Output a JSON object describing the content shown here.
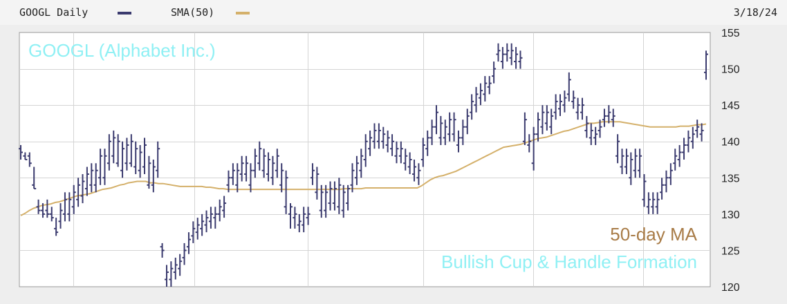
{
  "header": {
    "ticker_label": "GOOGL Daily",
    "sma_label": "SMA(50)",
    "date": "3/18/24"
  },
  "annotations": {
    "company": "GOOGL (Alphabet Inc.)",
    "ma_label": "50-day MA",
    "pattern": "Bullish Cup & Handle Formation"
  },
  "colors": {
    "price_bars": "#3a3a6e",
    "sma": "#d4b06a",
    "company_text": "#8ff0f4",
    "ma_text": "#a87b46",
    "pattern_text": "#8ff0f4"
  },
  "chart_data": {
    "type": "ohlc",
    "ylim": [
      120,
      155
    ],
    "y_ticks": [
      120,
      125,
      130,
      135,
      140,
      145,
      150,
      155
    ],
    "grid": true,
    "series": [
      {
        "name": "GOOGL Daily",
        "high": [
          139.5,
          138.5,
          138.5,
          136.5,
          132,
          131.5,
          132,
          131,
          129.5,
          131.5,
          133,
          133,
          134,
          135,
          135.5,
          136.5,
          137,
          137,
          139,
          139,
          141,
          141.5,
          141,
          140,
          140.5,
          141,
          140,
          139.5,
          140.5,
          138,
          137.5,
          140,
          126,
          123,
          123.5,
          124,
          124.5,
          126,
          127.5,
          129,
          129.5,
          130,
          130.5,
          131,
          131,
          132,
          132.5,
          136,
          137,
          137,
          138,
          138,
          137,
          139,
          140,
          139,
          138.5,
          138,
          139,
          137,
          136,
          131.5,
          131,
          130,
          131,
          131,
          137,
          136.5,
          134,
          134,
          134.5,
          134.5,
          135,
          134,
          134,
          137,
          138,
          139,
          141,
          141.5,
          142.5,
          142.5,
          142,
          141.5,
          141,
          140,
          140,
          139,
          138.5,
          137.5,
          137,
          140.5,
          141.5,
          143,
          145,
          143.5,
          143,
          144,
          144,
          141.5,
          143,
          144.5,
          146.5,
          147.5,
          148,
          149,
          149,
          151,
          153.5,
          153,
          153.5,
          153.5,
          153,
          152.5,
          144,
          141,
          142,
          144,
          145,
          145,
          144.5,
          146.5,
          146.5,
          147,
          149.5,
          147,
          146,
          146,
          143.5,
          142.5,
          142,
          143,
          144.5,
          145,
          144.5,
          141,
          139,
          139,
          138.5,
          139,
          139,
          135.5,
          133,
          133,
          133,
          135,
          136,
          137,
          139,
          139.5,
          140.5,
          141.5,
          142,
          143,
          142.5,
          152.5
        ],
        "low": [
          137.5,
          137.5,
          136.5,
          133.5,
          130,
          129.5,
          129.5,
          129,
          127,
          128,
          129,
          129,
          130,
          131,
          131.5,
          132.5,
          133,
          133,
          134,
          134,
          136,
          137,
          136.5,
          135,
          136,
          136.5,
          135.5,
          135,
          135.5,
          133.5,
          133,
          135,
          124,
          120,
          120,
          121,
          121.5,
          123,
          124.5,
          126,
          126.5,
          127,
          127.5,
          128,
          128,
          129,
          129.5,
          133,
          134,
          133,
          134.5,
          134.5,
          133,
          135,
          136,
          135,
          134.5,
          134,
          135,
          133,
          130,
          128,
          128,
          127.5,
          127.5,
          128.5,
          134,
          132,
          129.5,
          129.5,
          130.5,
          130.5,
          130,
          129.5,
          130.5,
          133,
          134,
          135,
          136.5,
          138,
          139,
          139,
          139,
          138.5,
          138,
          137,
          137,
          136,
          135.5,
          134.5,
          134,
          136.5,
          138,
          139.5,
          141,
          139.5,
          139.5,
          140,
          140,
          138.5,
          139.5,
          141,
          143,
          144,
          145,
          145.5,
          146.5,
          148,
          151,
          150,
          151,
          150.5,
          150,
          150,
          139.5,
          138.5,
          136,
          140,
          141,
          141.5,
          141,
          143,
          143.5,
          144,
          145.5,
          144.5,
          143,
          143,
          140.5,
          139.5,
          139.5,
          140.5,
          142,
          142.5,
          142,
          137,
          135.5,
          135.5,
          134,
          135,
          135,
          131,
          130,
          130,
          130,
          132,
          133,
          134,
          136,
          136.5,
          137.5,
          138.5,
          139,
          140.5,
          140,
          148.5
        ],
        "open": [
          139,
          138,
          138,
          134,
          131,
          130.5,
          130.5,
          130,
          128,
          129,
          130,
          130,
          131,
          132,
          132.5,
          133.5,
          134,
          134,
          135,
          135,
          137,
          138,
          137,
          136,
          137,
          137,
          136.5,
          136,
          136.5,
          134,
          134,
          136,
          125.5,
          121,
          121,
          122,
          122.5,
          124,
          125.5,
          127,
          127.5,
          128,
          128.5,
          129,
          129.5,
          130,
          130.5,
          134,
          135,
          134,
          135.5,
          135.5,
          134,
          136,
          137,
          136,
          135.5,
          135,
          136,
          134,
          131,
          130,
          129.5,
          128.5,
          128.5,
          129.5,
          135,
          133,
          130.5,
          130.5,
          131.5,
          131.5,
          131,
          130.5,
          131.5,
          134,
          135,
          136,
          137.5,
          139,
          140,
          140,
          140,
          139.5,
          139,
          138,
          138,
          137,
          136.5,
          135.5,
          135,
          137.5,
          139,
          140.5,
          142,
          140.5,
          140.5,
          141,
          141,
          139.5,
          140.5,
          142,
          144,
          145,
          146,
          146.5,
          147.5,
          149,
          152,
          151,
          152,
          151.5,
          151,
          151,
          140,
          139.5,
          137,
          141,
          142,
          142.5,
          142,
          144,
          144.5,
          145,
          146.5,
          145.5,
          144,
          144,
          141.5,
          140.5,
          140.5,
          141.5,
          143,
          143.5,
          143,
          138,
          136.5,
          136.5,
          135,
          136,
          136,
          132,
          131,
          131,
          131,
          133,
          134,
          135,
          137,
          137.5,
          138.5,
          139.5,
          140,
          141.5,
          141,
          149.5
        ],
        "close": [
          138.5,
          137.5,
          137,
          133.5,
          130.5,
          130,
          130,
          129.5,
          127.5,
          130.5,
          132,
          132,
          133,
          134,
          134.5,
          135.5,
          136,
          136,
          138,
          138,
          140,
          140.5,
          140,
          139,
          139.5,
          140,
          139,
          138.5,
          139.5,
          137,
          136.5,
          139,
          125,
          122,
          122.5,
          123,
          123.5,
          125,
          126.5,
          128,
          128.5,
          129,
          129.5,
          130,
          130,
          131,
          131.5,
          135,
          136,
          136,
          137,
          137,
          136,
          138,
          139,
          138,
          137.5,
          137,
          138,
          136,
          135,
          131,
          130,
          129,
          130,
          130,
          136,
          135.5,
          133,
          133,
          133.5,
          133.5,
          134,
          133,
          133.5,
          136,
          137,
          138,
          140,
          140.5,
          141.5,
          141.5,
          141,
          140.5,
          140,
          139,
          139,
          138,
          137.5,
          136.5,
          136,
          139.5,
          140.5,
          142,
          144,
          142.5,
          142,
          143,
          143,
          140.5,
          142,
          143.5,
          145.5,
          146.5,
          147,
          148,
          148,
          150,
          152.5,
          152,
          152.5,
          152.5,
          152,
          151.5,
          143,
          140,
          141,
          143,
          144,
          144,
          143.5,
          145.5,
          145.5,
          146,
          148.5,
          146,
          145,
          145,
          142.5,
          141.5,
          141,
          142,
          143.5,
          144,
          143.5,
          140,
          138,
          138,
          137.5,
          138,
          138,
          134.5,
          132,
          132,
          132,
          134,
          135,
          136,
          138,
          138.5,
          139.5,
          140.5,
          141,
          142,
          141.5,
          152
        ]
      },
      {
        "name": "SMA(50)",
        "values": [
          129.8,
          130.1,
          130.5,
          130.8,
          131,
          131.2,
          131.3,
          131.4,
          131.6,
          131.7,
          131.9,
          132.1,
          132.3,
          132.5,
          132.6,
          132.7,
          132.8,
          133,
          133.2,
          133.4,
          133.5,
          133.6,
          133.8,
          134,
          134.1,
          134.3,
          134.4,
          134.5,
          134.5,
          134.5,
          134.3,
          134.3,
          134.2,
          134.2,
          134.1,
          134,
          133.9,
          133.8,
          133.8,
          133.8,
          133.8,
          133.8,
          133.8,
          133.7,
          133.7,
          133.6,
          133.5,
          133.5,
          133.4,
          133.4,
          133.4,
          133.4,
          133.4,
          133.4,
          133.4,
          133.4,
          133.4,
          133.4,
          133.4,
          133.4,
          133.4,
          133.4,
          133.4,
          133.4,
          133.4,
          133.4,
          133.4,
          133.4,
          133.4,
          133.4,
          133.4,
          133.4,
          133.4,
          133.4,
          133.4,
          133.5,
          133.5,
          133.5,
          133.5,
          133.5,
          133.6,
          133.6,
          133.6,
          133.6,
          133.6,
          133.6,
          133.6,
          133.6,
          133.6,
          133.6,
          133.6,
          133.6,
          133.6,
          133.9,
          134.3,
          134.7,
          135,
          135.2,
          135.3,
          135.5,
          135.7,
          135.9,
          136.2,
          136.5,
          136.8,
          137.1,
          137.4,
          137.7,
          138,
          138.3,
          138.6,
          138.9,
          139.2,
          139.3,
          139.4,
          139.5,
          139.6,
          139.8,
          140,
          140.2,
          140.4,
          140.5,
          140.6,
          140.8,
          141,
          141.2,
          141.4,
          141.5,
          141.7,
          141.9,
          142.1,
          142.3,
          142.5,
          142.5,
          142.6,
          142.7,
          142.7,
          142.7,
          142.7,
          142.7,
          142.6,
          142.5,
          142.4,
          142.3,
          142.2,
          142.1,
          142,
          142,
          142,
          142,
          142,
          142,
          142,
          142.1,
          142.1,
          142.1,
          142.2,
          142.3,
          142.3,
          142.4
        ]
      }
    ]
  }
}
